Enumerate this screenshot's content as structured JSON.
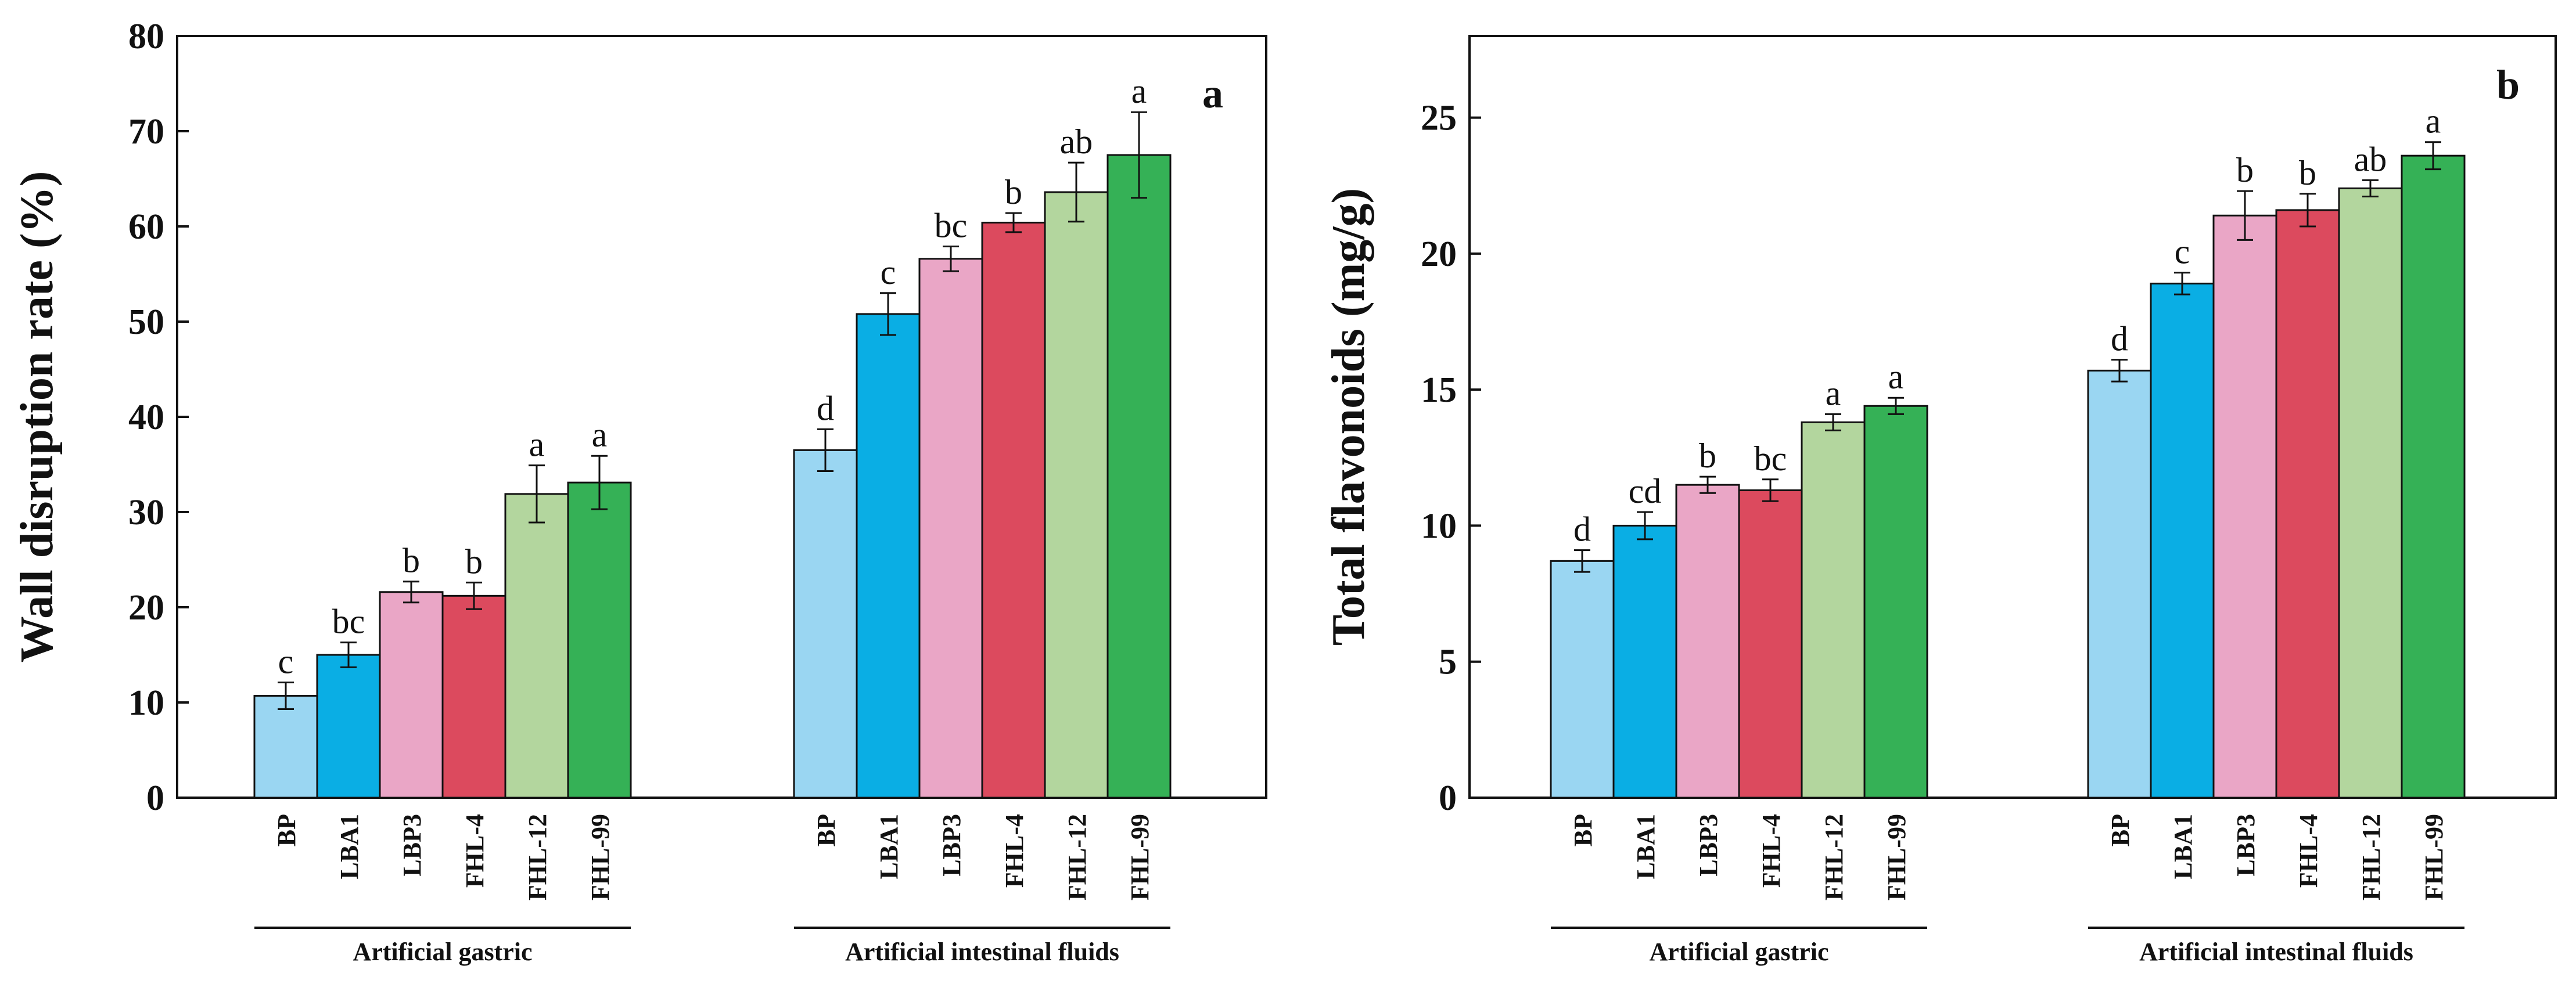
{
  "chart_data": [
    {
      "type": "bar",
      "panel_label": "a",
      "ylabel": "Wall disruption rate (%)",
      "ylim": [
        0,
        80
      ],
      "yticks": [
        "0",
        "10",
        "20",
        "30",
        "40",
        "50",
        "60",
        "70",
        "80"
      ],
      "categories": [
        "BP",
        "LBA1",
        "LBP3",
        "FHL-4",
        "FHL-12",
        "FHL-99"
      ],
      "groups": [
        "Artificial gastric",
        "Artificial intestinal fluids"
      ],
      "colors": [
        "#9ad6f2",
        "#0aaee4",
        "#eaa6c6",
        "#dc4a5e",
        "#b3d69e",
        "#35b156"
      ],
      "values": [
        [
          10.7,
          15.0,
          21.6,
          21.2,
          31.9,
          33.1
        ],
        [
          36.5,
          50.8,
          56.6,
          60.4,
          63.6,
          67.5
        ]
      ],
      "errors": [
        [
          1.4,
          1.3,
          1.1,
          1.4,
          3.0,
          2.8
        ],
        [
          2.2,
          2.2,
          1.3,
          1.0,
          3.1,
          4.5
        ]
      ],
      "significance": [
        [
          "c",
          "bc",
          "b",
          "b",
          "a",
          "a"
        ],
        [
          "d",
          "c",
          "bc",
          "b",
          "ab",
          "a"
        ]
      ]
    },
    {
      "type": "bar",
      "panel_label": "b",
      "ylabel": "Total flavonoids (mg/g)",
      "ylim": [
        0,
        28
      ],
      "yticks": [
        "0",
        "5",
        "10",
        "15",
        "20",
        "25"
      ],
      "categories": [
        "BP",
        "LBA1",
        "LBP3",
        "FHL-4",
        "FHL-12",
        "FHL-99"
      ],
      "groups": [
        "Artificial gastric",
        "Artificial intestinal fluids"
      ],
      "colors": [
        "#9ad6f2",
        "#0aaee4",
        "#eaa6c6",
        "#dc4a5e",
        "#b3d69e",
        "#35b156"
      ],
      "values": [
        [
          8.7,
          10.0,
          11.5,
          11.3,
          13.8,
          14.4
        ],
        [
          15.7,
          18.9,
          21.4,
          21.6,
          22.4,
          23.6
        ]
      ],
      "errors": [
        [
          0.4,
          0.5,
          0.3,
          0.4,
          0.3,
          0.3
        ],
        [
          0.4,
          0.4,
          0.9,
          0.6,
          0.3,
          0.5
        ]
      ],
      "significance": [
        [
          "d",
          "cd",
          "b",
          "bc",
          "a",
          "a"
        ],
        [
          "d",
          "c",
          "b",
          "b",
          "ab",
          "a"
        ]
      ]
    }
  ]
}
